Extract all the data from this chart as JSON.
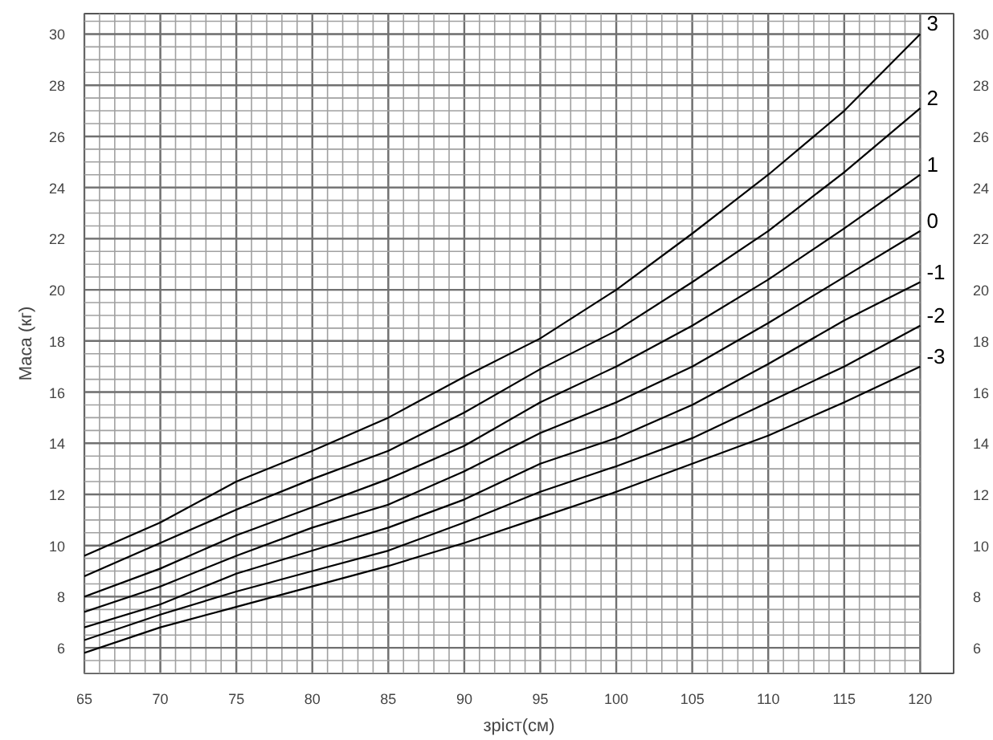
{
  "chart_data": {
    "type": "line",
    "xlabel": "зріст(см)",
    "ylabel": "Маса (кг)",
    "x": [
      65,
      70,
      75,
      80,
      85,
      90,
      95,
      100,
      105,
      110,
      115,
      120
    ],
    "series": [
      {
        "name": "3",
        "color": "#000000",
        "values": [
          9.6,
          10.9,
          12.5,
          13.7,
          15.0,
          16.6,
          18.1,
          20.0,
          22.2,
          24.5,
          27.0,
          30.0
        ]
      },
      {
        "name": "2",
        "color": "#000000",
        "values": [
          8.8,
          10.1,
          11.4,
          12.6,
          13.7,
          15.2,
          16.9,
          18.4,
          20.3,
          22.3,
          24.6,
          27.1
        ]
      },
      {
        "name": "1",
        "color": "#000000",
        "values": [
          8.0,
          9.1,
          10.4,
          11.5,
          12.6,
          13.9,
          15.6,
          17.0,
          18.6,
          20.4,
          22.4,
          24.5
        ]
      },
      {
        "name": "0",
        "color": "#000000",
        "values": [
          7.4,
          8.4,
          9.6,
          10.7,
          11.6,
          12.9,
          14.4,
          15.6,
          17.0,
          18.7,
          20.5,
          22.3
        ]
      },
      {
        "name": "-1",
        "color": "#000000",
        "values": [
          6.8,
          7.7,
          8.9,
          9.8,
          10.7,
          11.8,
          13.2,
          14.2,
          15.5,
          17.1,
          18.8,
          20.3
        ]
      },
      {
        "name": "-2",
        "color": "#000000",
        "values": [
          6.3,
          7.3,
          8.2,
          9.0,
          9.8,
          10.9,
          12.1,
          13.1,
          14.2,
          15.6,
          17.0,
          18.6
        ]
      },
      {
        "name": "-3",
        "color": "#000000",
        "values": [
          5.8,
          6.8,
          7.6,
          8.4,
          9.2,
          10.1,
          11.1,
          12.1,
          13.2,
          14.3,
          15.6,
          17.0
        ]
      }
    ],
    "xlim": [
      65,
      122.2
    ],
    "xticks": [
      65,
      70,
      75,
      80,
      85,
      90,
      95,
      100,
      105,
      110,
      115,
      120
    ],
    "ylim": [
      5,
      30.8
    ],
    "yticks": [
      6,
      8,
      10,
      12,
      14,
      16,
      18,
      20,
      22,
      24,
      26,
      28,
      30
    ],
    "y2lim": [
      5,
      30.8
    ],
    "y2ticks": [
      6,
      8,
      10,
      12,
      14,
      16,
      18,
      20,
      22,
      24,
      26,
      28,
      30
    ],
    "grid": true,
    "marker": "none",
    "line_style": "solid"
  }
}
